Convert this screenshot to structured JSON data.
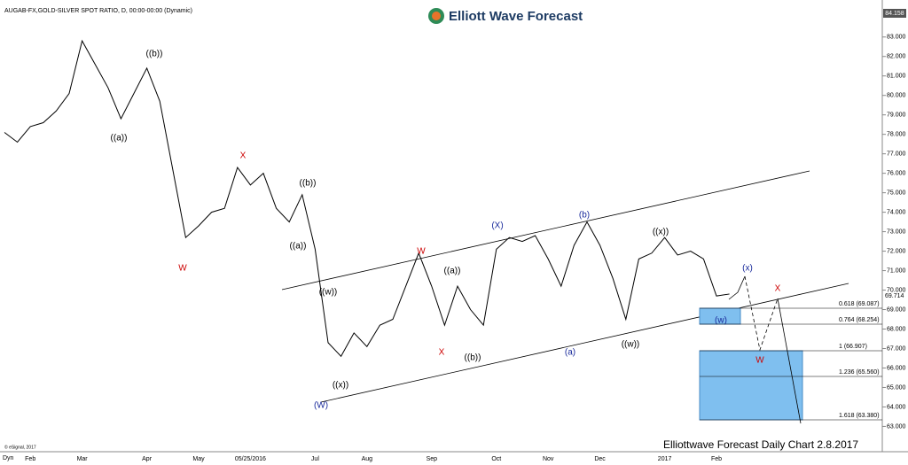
{
  "chart_data": {
    "type": "line",
    "header": "AUGAB-FX,GOLD-SILVER SPOT RATIO, D, 00:00-00:00 (Dynamic)",
    "logo": "Elliott Wave Forecast",
    "footer": "Elliottwave Forecast Daily Chart 2.8.2017",
    "copyright": "© eSignal, 2017",
    "corner": "Dyn",
    "axis_top_label": "84.158",
    "last_price_label": "69.714",
    "categories": [
      null,
      null,
      "Feb",
      null,
      null,
      null,
      "Mar",
      null,
      null,
      null,
      null,
      "Apr",
      null,
      null,
      null,
      "May",
      null,
      null,
      null,
      "05/25/2016",
      null,
      null,
      null,
      null,
      "Jul",
      null,
      null,
      null,
      "Aug",
      null,
      null,
      null,
      null,
      "Sep",
      null,
      null,
      null,
      null,
      "Oct",
      null,
      null,
      null,
      "Nov",
      null,
      null,
      null,
      "Dec",
      null,
      null,
      null,
      null,
      "2017",
      null,
      null,
      null,
      "Feb",
      null
    ],
    "series": [
      {
        "name": "Gold/Silver ratio",
        "color": "#000000",
        "values": [
          78.1,
          77.6,
          78.4,
          78.6,
          79.2,
          80.1,
          82.8,
          81.6,
          80.4,
          78.8,
          80.1,
          81.4,
          79.7,
          76.2,
          72.7,
          73.3,
          74.0,
          74.2,
          76.3,
          75.4,
          76.0,
          74.2,
          73.5,
          74.9,
          72.1,
          67.3,
          66.6,
          67.8,
          67.1,
          68.2,
          68.5,
          70.2,
          71.9,
          70.2,
          68.2,
          70.2,
          69.0,
          68.2,
          72.1,
          72.7,
          72.5,
          72.8,
          71.6,
          70.2,
          72.3,
          73.5,
          72.3,
          70.6,
          68.5,
          71.6,
          71.9,
          72.7,
          71.8,
          72.0,
          71.6,
          69.7,
          69.8
        ]
      }
    ],
    "ylim": [
      61.7,
      84.9
    ],
    "yticks": [
      {
        "value": 63,
        "label": "63.000"
      },
      {
        "value": 64,
        "label": "64.000"
      },
      {
        "value": 65,
        "label": "65.000"
      },
      {
        "value": 66,
        "label": "66.000"
      },
      {
        "value": 67,
        "label": "67.000"
      },
      {
        "value": 68,
        "label": "68.000"
      },
      {
        "value": 69,
        "label": "69.000"
      },
      {
        "value": 70,
        "label": "70.000"
      },
      {
        "value": 71,
        "label": "71.000"
      },
      {
        "value": 72,
        "label": "72.000"
      },
      {
        "value": 73,
        "label": "73.000"
      },
      {
        "value": 74,
        "label": "74.000"
      },
      {
        "value": 75,
        "label": "75.000"
      },
      {
        "value": 76,
        "label": "76.000"
      },
      {
        "value": 77,
        "label": "77.000"
      },
      {
        "value": 78,
        "label": "78.000"
      },
      {
        "value": 79,
        "label": "79.000"
      },
      {
        "value": 80,
        "label": "80.000"
      },
      {
        "value": 81,
        "label": "81.000"
      },
      {
        "value": 82,
        "label": "82.000"
      },
      {
        "value": 83,
        "label": "83.000"
      }
    ],
    "wave_labels": [
      "((a))",
      "((b))",
      "W",
      "X",
      "((b))",
      "((a))",
      "((w))",
      "((x))",
      "(W)",
      "W",
      "((a))",
      "X",
      "((b))",
      "(X)",
      "(b)",
      "(a)",
      "((x))",
      "((w))",
      "(w)",
      "(x)",
      "X",
      "W"
    ],
    "fib_labels": [
      "0.618 (69.087)",
      "0.764 (68.254)",
      "1 (66.907)",
      "1.236 (65.560)",
      "1.618 (63.380)"
    ]
  }
}
